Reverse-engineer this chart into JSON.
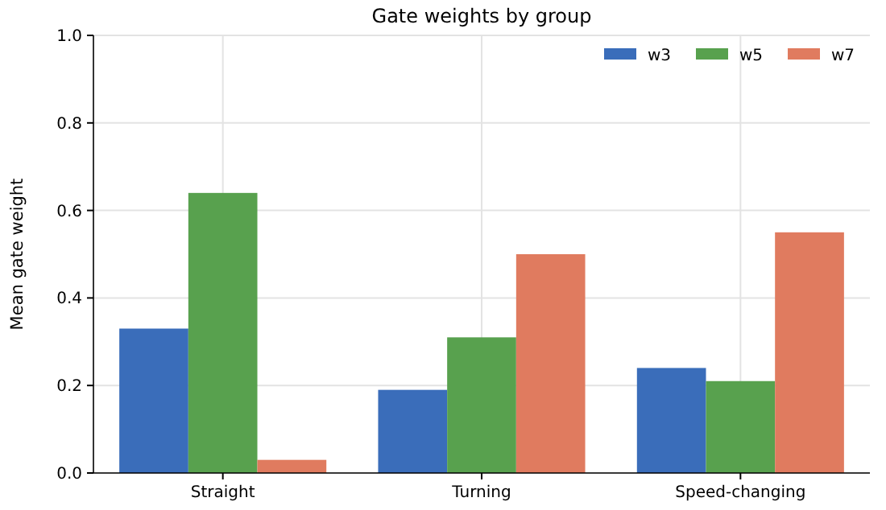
{
  "chart_data": {
    "type": "bar",
    "title": "Gate weights by group",
    "ylabel": "Mean gate weight",
    "categories": [
      "Straight",
      "Turning",
      "Speed-changing"
    ],
    "series": [
      {
        "name": "w3",
        "color": "#3a6dba",
        "values": [
          0.33,
          0.19,
          0.24
        ]
      },
      {
        "name": "w5",
        "color": "#58a14e",
        "values": [
          0.64,
          0.31,
          0.21
        ]
      },
      {
        "name": "w7",
        "color": "#e07b5f",
        "values": [
          0.03,
          0.5,
          0.55
        ]
      }
    ],
    "ylim": [
      0,
      1
    ],
    "yticks": [
      {
        "value": 0,
        "label": "0.0"
      },
      {
        "value": 0.2,
        "label": "0.2"
      },
      {
        "value": 0.4,
        "label": "0.4"
      },
      {
        "value": 0.6,
        "label": "0.6"
      },
      {
        "value": 0.8,
        "label": "0.8"
      },
      {
        "value": 1,
        "label": "1.0"
      }
    ],
    "grid": true,
    "legend": "top right"
  }
}
